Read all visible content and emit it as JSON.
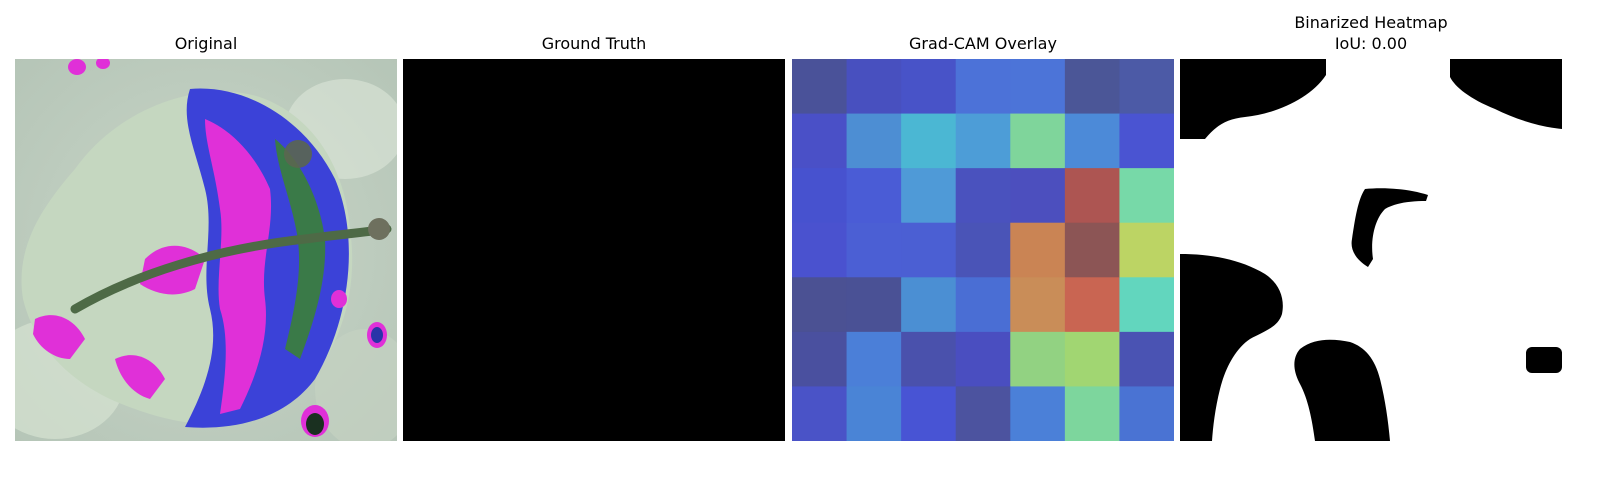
{
  "figure": {
    "panels": [
      {
        "title": "Original"
      },
      {
        "title": "Ground Truth"
      },
      {
        "title": "Grad-CAM Overlay"
      },
      {
        "title": "Binarized Heatmap",
        "subtitle": "IoU: 0.00"
      }
    ]
  },
  "colors": {
    "background": "#ffffff",
    "ground_truth_mask": "#000000",
    "heatmap_foreground": "#ffffff",
    "heatmap_background": "#000000"
  },
  "gradcam_grid": {
    "rows": 7,
    "cols": 7,
    "cells": [
      [
        "#4a5299",
        "#4850bf",
        "#4853c8",
        "#4c72d8",
        "#4c74d8",
        "#4b5697",
        "#4c5aa6"
      ],
      [
        "#4a50c7",
        "#4d8ed3",
        "#4bb7d3",
        "#4d9dd7",
        "#7fd59b",
        "#4c8ad8",
        "#4a54d2"
      ],
      [
        "#4752cf",
        "#4a5cd6",
        "#4f9ad7",
        "#4a52be",
        "#4c4fbe",
        "#ad5552",
        "#77d9a8"
      ],
      [
        "#4a52cf",
        "#4b5fd4",
        "#4b5fd3",
        "#4a54b7",
        "#ca8454",
        "#8c5555",
        "#bcd464"
      ],
      [
        "#4b5193",
        "#4a5195",
        "#4b8fd3",
        "#4a6ed4",
        "#c98d58",
        "#c96552",
        "#62d6be"
      ],
      [
        "#4a509f",
        "#4b7fd8",
        "#4a51ac",
        "#4a4ec0",
        "#92d282",
        "#a1d672",
        "#4a53b3"
      ],
      [
        "#4a53c7",
        "#4a84d6",
        "#4854d4",
        "#4c539f",
        "#4b80d8",
        "#7dd69d",
        "#4a73d3"
      ]
    ]
  }
}
